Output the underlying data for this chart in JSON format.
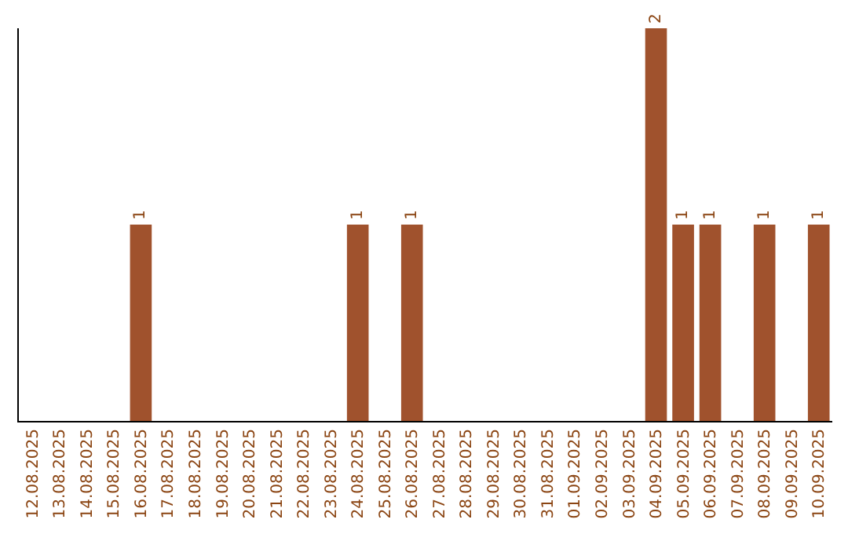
{
  "chart_data": {
    "type": "bar",
    "categories": [
      "12.08.2025",
      "13.08.2025",
      "14.08.2025",
      "15.08.2025",
      "16.08.2025",
      "17.08.2025",
      "18.08.2025",
      "19.08.2025",
      "20.08.2025",
      "21.08.2025",
      "22.08.2025",
      "23.08.2025",
      "24.08.2025",
      "25.08.2025",
      "26.08.2025",
      "27.08.2025",
      "28.08.2025",
      "29.08.2025",
      "30.08.2025",
      "31.08.2025",
      "01.09.2025",
      "02.09.2025",
      "03.09.2025",
      "04.09.2025",
      "05.09.2025",
      "06.09.2025",
      "07.09.2025",
      "08.09.2025",
      "09.09.2025",
      "10.09.2025"
    ],
    "values": [
      0,
      0,
      0,
      0,
      1,
      0,
      0,
      0,
      0,
      0,
      0,
      0,
      1,
      0,
      1,
      0,
      0,
      0,
      0,
      0,
      0,
      0,
      0,
      2,
      1,
      1,
      0,
      1,
      0,
      1
    ],
    "value_labels": [
      null,
      null,
      null,
      null,
      "1",
      null,
      null,
      null,
      null,
      null,
      null,
      null,
      "1",
      null,
      "1",
      null,
      null,
      null,
      null,
      null,
      null,
      null,
      null,
      "2",
      "1",
      "1",
      null,
      "1",
      null,
      "1"
    ],
    "color": "#a0522d",
    "tick_labels": "x"
  }
}
